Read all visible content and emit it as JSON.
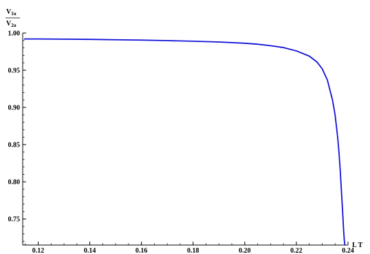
{
  "chart_data": {
    "type": "line",
    "title": "",
    "xlabel": "L T",
    "ylabel": {
      "numerator": "V",
      "numerator_sub": "1u",
      "denominator": "V",
      "denominator_sub": "2u"
    },
    "xlim": [
      0.114,
      0.24
    ],
    "ylim": [
      0.715,
      1.0
    ],
    "x_ticks": [
      0.12,
      0.14,
      0.16,
      0.18,
      0.2,
      0.22,
      0.24
    ],
    "x_tick_labels": [
      "0.12",
      "0.14",
      "0.16",
      "0.18",
      "0.20",
      "0.22",
      "0.24"
    ],
    "y_ticks": [
      0.75,
      0.8,
      0.85,
      0.9,
      0.95,
      1.0
    ],
    "y_tick_labels": [
      "0.75",
      "0.80",
      "0.85",
      "0.90",
      "0.95",
      "1.00"
    ],
    "grid": false,
    "legend": "none",
    "colors": {
      "line": "#1010d8",
      "axis": "#000000"
    },
    "series": [
      {
        "x": [
          0.1145,
          0.12,
          0.13,
          0.14,
          0.15,
          0.16,
          0.17,
          0.18,
          0.19,
          0.2,
          0.205,
          0.21,
          0.215,
          0.22,
          0.225,
          0.228,
          0.23,
          0.232,
          0.234,
          0.235,
          0.236,
          0.2365,
          0.237,
          0.2375,
          0.238,
          0.2383,
          0.2386,
          0.2388
        ],
        "y": [
          0.992,
          0.992,
          0.9918,
          0.9915,
          0.991,
          0.9905,
          0.9898,
          0.989,
          0.988,
          0.9863,
          0.985,
          0.983,
          0.9805,
          0.976,
          0.969,
          0.961,
          0.952,
          0.937,
          0.91,
          0.89,
          0.86,
          0.84,
          0.815,
          0.785,
          0.755,
          0.735,
          0.72,
          0.715
        ]
      }
    ]
  }
}
